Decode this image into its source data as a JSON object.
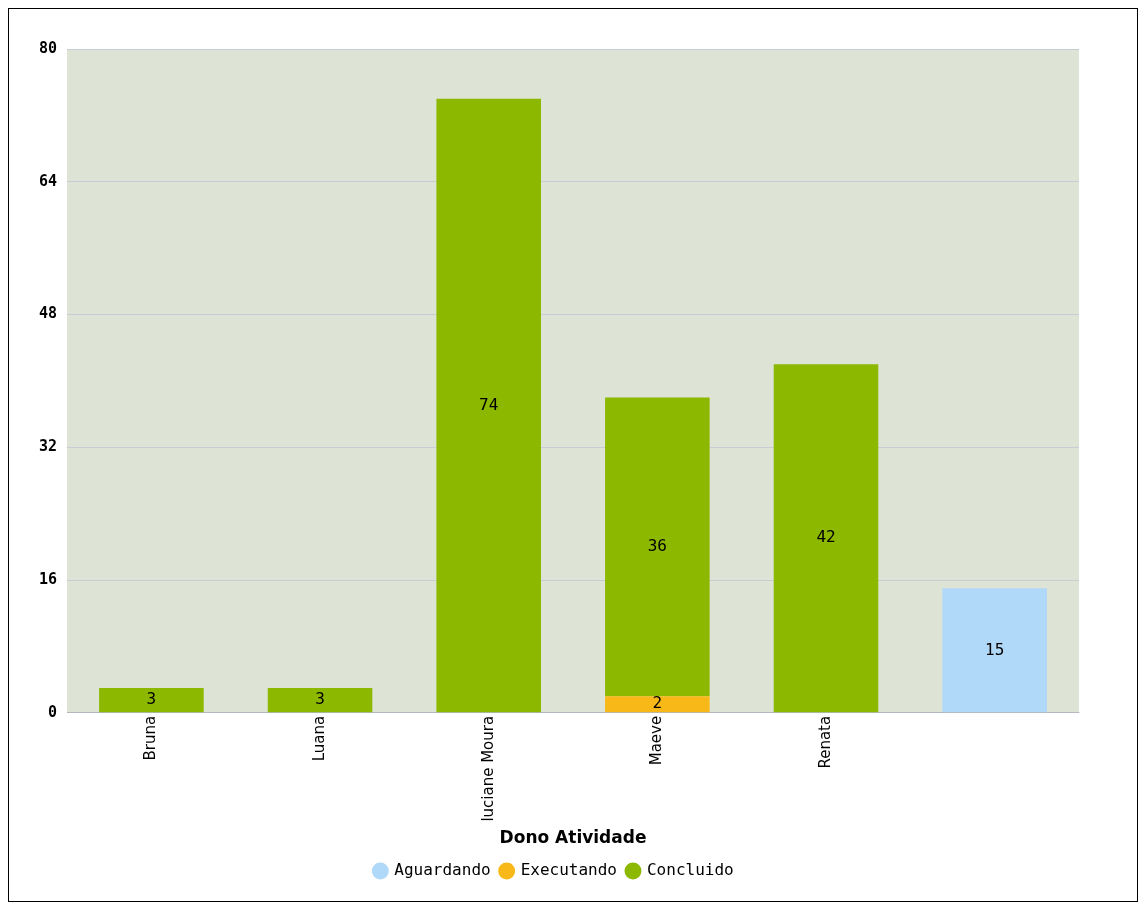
{
  "chart_data": {
    "type": "bar",
    "stacked": true,
    "xlabel": "Dono Atividade",
    "categories": [
      "Bruna",
      "Luana",
      "luciane Moura",
      "Maeve",
      "Renata",
      null
    ],
    "series": [
      {
        "name": "Aguardando",
        "color": "#b0d8f8",
        "values": [
          null,
          null,
          null,
          null,
          null,
          15
        ]
      },
      {
        "name": "Executando",
        "color": "#f8b818",
        "values": [
          null,
          null,
          null,
          2,
          null,
          null
        ]
      },
      {
        "name": "Concluido",
        "color": "#8cb800",
        "values": [
          3,
          3,
          74,
          36,
          42,
          null
        ]
      }
    ],
    "ylim": [
      0,
      80
    ],
    "yticks": [
      0,
      16,
      32,
      48,
      64,
      80
    ],
    "grid": "y",
    "legend": "bottom",
    "data_labels": true
  }
}
